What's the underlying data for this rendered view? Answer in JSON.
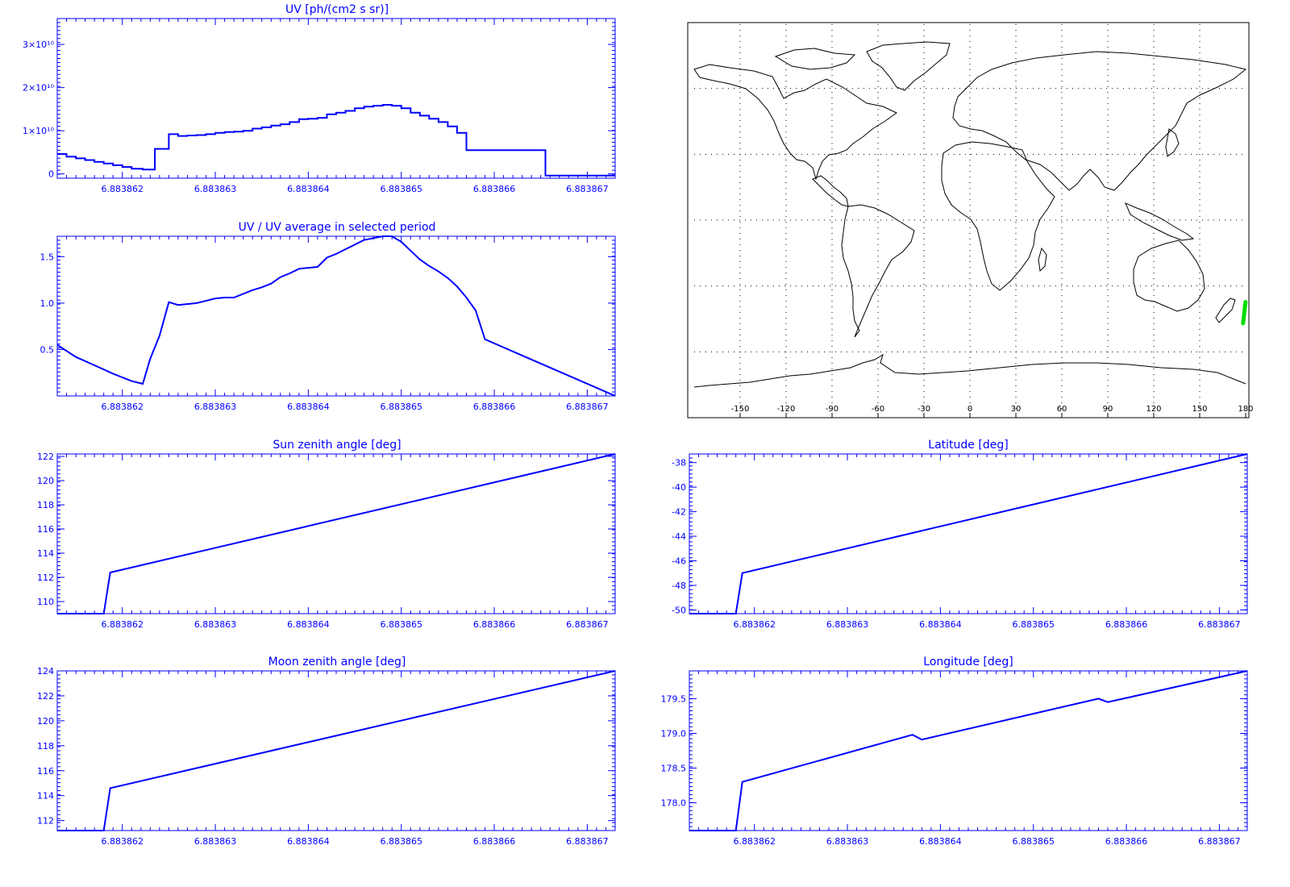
{
  "colors": {
    "axis": "#0000ff",
    "line": "#0000ff",
    "map": "#000000",
    "track": "#00dd00",
    "grid": "#000000"
  },
  "x_ticks": [
    "6.883862",
    "6.883863",
    "6.883864",
    "6.883865",
    "6.883866",
    "6.883867"
  ],
  "chart_data": [
    {
      "id": "uv",
      "type": "line",
      "step": true,
      "title": "UV [ph/(cm2 s sr)]",
      "xlim": [
        6.8838613,
        6.8838673
      ],
      "ylim": [
        -0.1,
        3.6
      ],
      "y_ticks": [
        {
          "v": 0,
          "label": "0"
        },
        {
          "v": 1,
          "label": "1×10¹⁰"
        },
        {
          "v": 2,
          "label": "2×10¹⁰"
        },
        {
          "v": 3,
          "label": "3×10¹⁰"
        }
      ],
      "x": [
        6.8838613,
        6.8838614,
        6.8838615,
        6.8838616,
        6.8838617,
        6.8838618,
        6.8838619,
        6.883862,
        6.8838621,
        6.88386222,
        6.88386235,
        6.8838625,
        6.8838626,
        6.8838627,
        6.8838628,
        6.8838629,
        6.883863,
        6.8838631,
        6.8838632,
        6.8838633,
        6.8838634,
        6.8838635,
        6.8838636,
        6.8838637,
        6.8838638,
        6.8838639,
        6.883864,
        6.8838641,
        6.8838642,
        6.8838643,
        6.8838644,
        6.8838645,
        6.8838646,
        6.8838647,
        6.8838648,
        6.8838649,
        6.883865,
        6.8838651,
        6.8838652,
        6.8838653,
        6.8838654,
        6.8838655,
        6.8838656,
        6.8838657,
        6.88386585,
        6.88386655,
        6.8838673
      ],
      "y": [
        0.46,
        0.4,
        0.36,
        0.32,
        0.28,
        0.24,
        0.2,
        0.16,
        0.12,
        0.1,
        0.58,
        0.92,
        0.88,
        0.89,
        0.9,
        0.92,
        0.95,
        0.97,
        0.98,
        1.0,
        1.05,
        1.08,
        1.12,
        1.15,
        1.2,
        1.27,
        1.28,
        1.3,
        1.38,
        1.42,
        1.46,
        1.52,
        1.56,
        1.58,
        1.6,
        1.58,
        1.52,
        1.42,
        1.35,
        1.28,
        1.2,
        1.1,
        0.95,
        0.55,
        0.55,
        -0.04,
        -0.04
      ]
    },
    {
      "id": "uvratio",
      "type": "line",
      "title": "UV / UV average in selected period",
      "xlim": [
        6.8838613,
        6.8838673
      ],
      "ylim": [
        0.0,
        1.72
      ],
      "y_ticks": [
        {
          "v": 0.5,
          "label": "0.5"
        },
        {
          "v": 1.0,
          "label": "1.0"
        },
        {
          "v": 1.5,
          "label": "1.5"
        }
      ],
      "x": [
        6.8838613,
        6.8838615,
        6.8838617,
        6.8838619,
        6.883862,
        6.8838621,
        6.88386222,
        6.8838623,
        6.8838624,
        6.8838625,
        6.8838626,
        6.8838628,
        6.883863,
        6.8838631,
        6.8838632,
        6.8838634,
        6.8838635,
        6.8838636,
        6.8838637,
        6.8838638,
        6.8838639,
        6.883864,
        6.8838641,
        6.8838642,
        6.8838643,
        6.8838644,
        6.8838645,
        6.8838646,
        6.8838647,
        6.8838648,
        6.8838649,
        6.883865,
        6.8838652,
        6.8838653,
        6.8838654,
        6.8838655,
        6.8838656,
        6.8838657,
        6.8838658,
        6.8838659,
        6.8838673
      ],
      "y": [
        0.55,
        0.42,
        0.33,
        0.24,
        0.2,
        0.16,
        0.13,
        0.4,
        0.65,
        1.01,
        0.98,
        1.0,
        1.05,
        1.06,
        1.06,
        1.14,
        1.17,
        1.21,
        1.28,
        1.32,
        1.37,
        1.38,
        1.39,
        1.49,
        1.53,
        1.58,
        1.63,
        1.68,
        1.7,
        1.72,
        1.72,
        1.66,
        1.47,
        1.4,
        1.34,
        1.27,
        1.18,
        1.06,
        0.92,
        0.61,
        0.0
      ]
    },
    {
      "id": "sza",
      "type": "line",
      "title": "Sun zenith angle [deg]",
      "xlim": [
        6.8838613,
        6.8838673
      ],
      "ylim": [
        109.0,
        122.2
      ],
      "y_ticks": [
        {
          "v": 110,
          "label": "110"
        },
        {
          "v": 112,
          "label": "112"
        },
        {
          "v": 114,
          "label": "114"
        },
        {
          "v": 116,
          "label": "116"
        },
        {
          "v": 118,
          "label": "118"
        },
        {
          "v": 120,
          "label": "120"
        },
        {
          "v": 122,
          "label": "122"
        }
      ],
      "x": [
        6.8838613,
        6.8838618,
        6.88386187,
        6.8838673
      ],
      "y": [
        109.0,
        109.0,
        112.4,
        122.2
      ]
    },
    {
      "id": "mza",
      "type": "line",
      "title": "Moon zenith angle [deg]",
      "xlim": [
        6.8838613,
        6.8838673
      ],
      "ylim": [
        111.2,
        124.0
      ],
      "y_ticks": [
        {
          "v": 112,
          "label": "112"
        },
        {
          "v": 114,
          "label": "114"
        },
        {
          "v": 116,
          "label": "116"
        },
        {
          "v": 118,
          "label": "118"
        },
        {
          "v": 120,
          "label": "120"
        },
        {
          "v": 122,
          "label": "122"
        },
        {
          "v": 124,
          "label": "124"
        }
      ],
      "x": [
        6.8838613,
        6.8838618,
        6.88386187,
        6.8838673
      ],
      "y": [
        111.2,
        111.2,
        114.6,
        124.0
      ]
    },
    {
      "id": "lat",
      "type": "line",
      "title": "Latitude [deg]",
      "xlim": [
        6.8838613,
        6.8838673
      ],
      "ylim": [
        -50.3,
        -37.3
      ],
      "y_ticks": [
        {
          "v": -50,
          "label": "-50"
        },
        {
          "v": -48,
          "label": "-48"
        },
        {
          "v": -46,
          "label": "-46"
        },
        {
          "v": -44,
          "label": "-44"
        },
        {
          "v": -42,
          "label": "-42"
        },
        {
          "v": -40,
          "label": "-40"
        },
        {
          "v": -38,
          "label": "-38"
        }
      ],
      "x": [
        6.8838613,
        6.8838618,
        6.88386187,
        6.8838673
      ],
      "y": [
        -50.3,
        -50.3,
        -47.0,
        -37.3
      ]
    },
    {
      "id": "lon",
      "type": "line",
      "title": "Longitude [deg]",
      "xlim": [
        6.8838613,
        6.8838673
      ],
      "ylim": [
        177.6,
        179.9
      ],
      "y_ticks": [
        {
          "v": 178.0,
          "label": "178.0"
        },
        {
          "v": 178.5,
          "label": "178.5"
        },
        {
          "v": 179.0,
          "label": "179.0"
        },
        {
          "v": 179.5,
          "label": "179.5"
        }
      ],
      "x": [
        6.8838613,
        6.8838618,
        6.88386187,
        6.8838637,
        6.8838638,
        6.8838657,
        6.8838658,
        6.8838673
      ],
      "y": [
        177.6,
        177.6,
        178.3,
        178.98,
        178.91,
        179.5,
        179.45,
        179.9
      ]
    }
  ],
  "map": {
    "lon_ticks": [
      "-150",
      "-120",
      "-90",
      "-60",
      "-30",
      "0",
      "30",
      "60",
      "90",
      "120",
      "150",
      "180"
    ],
    "track": {
      "lon_start": 178.3,
      "lon_end": 179.9,
      "lat_start": -47.0,
      "lat_end": -37.3
    }
  }
}
